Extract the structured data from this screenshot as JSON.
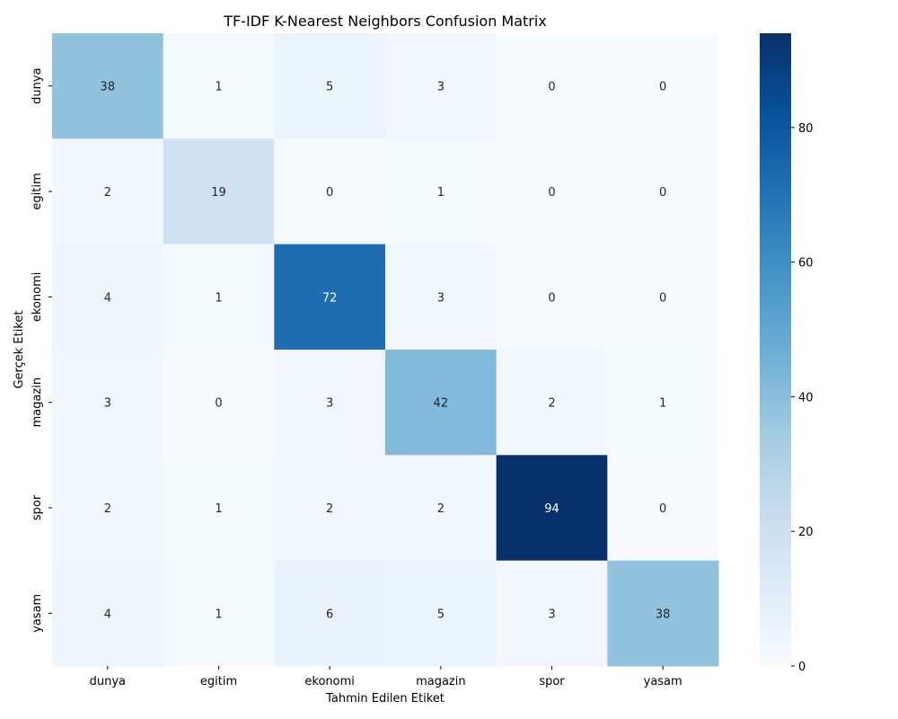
{
  "chart_data": {
    "type": "heatmap",
    "title": "TF-IDF K-Nearest Neighbors Confusion Matrix",
    "xlabel": "Tahmin Edilen Etiket",
    "ylabel": "Gerçek Etiket",
    "x_categories": [
      "dunya",
      "egitim",
      "ekonomi",
      "magazin",
      "spor",
      "yasam"
    ],
    "y_categories": [
      "dunya",
      "egitim",
      "ekonomi",
      "magazin",
      "spor",
      "yasam"
    ],
    "matrix": [
      [
        38,
        1,
        5,
        3,
        0,
        0
      ],
      [
        2,
        19,
        0,
        1,
        0,
        0
      ],
      [
        4,
        1,
        72,
        3,
        0,
        0
      ],
      [
        3,
        0,
        3,
        42,
        2,
        1
      ],
      [
        2,
        1,
        2,
        2,
        94,
        0
      ],
      [
        4,
        1,
        6,
        5,
        3,
        38
      ]
    ],
    "colormap": "Blues",
    "color_range": [
      0,
      94
    ],
    "colorbar_ticks": [
      0,
      20,
      40,
      60,
      80
    ],
    "annotated": true
  }
}
